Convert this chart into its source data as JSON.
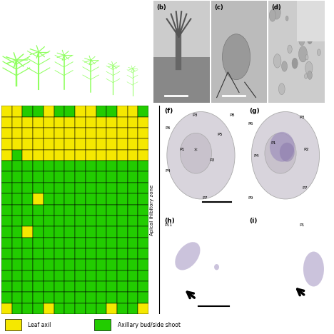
{
  "grid_rows": 19,
  "grid_cols": 14,
  "yellow_color": "#F5E800",
  "green_color": "#22CC00",
  "bg_color": "#FFFFFF",
  "legend_yellow_label": "Leaf axil",
  "legend_green_label": "Axillary bud/side shoot",
  "apical_label": "Apical ihibitory zone",
  "grid_data": [
    [
      1,
      1,
      0,
      0,
      1,
      0,
      0,
      1,
      1,
      0,
      0,
      1,
      1,
      0
    ],
    [
      1,
      1,
      1,
      1,
      1,
      1,
      1,
      1,
      1,
      1,
      1,
      1,
      1,
      1
    ],
    [
      1,
      1,
      1,
      1,
      1,
      1,
      1,
      1,
      1,
      1,
      1,
      1,
      1,
      1
    ],
    [
      1,
      1,
      1,
      1,
      1,
      1,
      1,
      1,
      1,
      1,
      1,
      1,
      1,
      1
    ],
    [
      1,
      0,
      1,
      1,
      1,
      1,
      1,
      1,
      1,
      1,
      1,
      1,
      1,
      1
    ],
    [
      0,
      0,
      0,
      0,
      0,
      0,
      0,
      0,
      0,
      0,
      0,
      0,
      0,
      0
    ],
    [
      0,
      0,
      0,
      0,
      0,
      0,
      0,
      0,
      0,
      0,
      0,
      0,
      0,
      0
    ],
    [
      0,
      0,
      0,
      0,
      0,
      0,
      0,
      0,
      0,
      0,
      0,
      0,
      0,
      0
    ],
    [
      0,
      0,
      0,
      1,
      0,
      0,
      0,
      0,
      0,
      0,
      0,
      0,
      0,
      0
    ],
    [
      0,
      0,
      0,
      0,
      0,
      0,
      0,
      0,
      0,
      0,
      0,
      0,
      0,
      0
    ],
    [
      0,
      0,
      0,
      0,
      0,
      0,
      0,
      0,
      0,
      0,
      0,
      0,
      0,
      0
    ],
    [
      0,
      0,
      1,
      0,
      0,
      0,
      0,
      0,
      0,
      0,
      0,
      0,
      0,
      0
    ],
    [
      0,
      0,
      0,
      0,
      0,
      0,
      0,
      0,
      0,
      0,
      0,
      0,
      0,
      0
    ],
    [
      0,
      0,
      0,
      0,
      0,
      0,
      0,
      0,
      0,
      0,
      0,
      0,
      0,
      0
    ],
    [
      0,
      0,
      0,
      0,
      0,
      0,
      0,
      0,
      0,
      0,
      0,
      0,
      0,
      0
    ],
    [
      0,
      0,
      0,
      0,
      0,
      0,
      0,
      0,
      0,
      0,
      0,
      0,
      0,
      0
    ],
    [
      0,
      0,
      0,
      0,
      0,
      0,
      0,
      0,
      0,
      0,
      0,
      0,
      0,
      0
    ],
    [
      0,
      0,
      0,
      0,
      0,
      0,
      0,
      0,
      0,
      0,
      0,
      0,
      0,
      0
    ],
    [
      1,
      0,
      0,
      0,
      1,
      0,
      0,
      0,
      0,
      0,
      1,
      0,
      0,
      1
    ]
  ],
  "panel_a_bg": "#1A7A1A",
  "panel_bcd_bg": "#909090",
  "panel_fghi_bg": "#E0DCE4",
  "figure_bg": "#FFFFFF"
}
